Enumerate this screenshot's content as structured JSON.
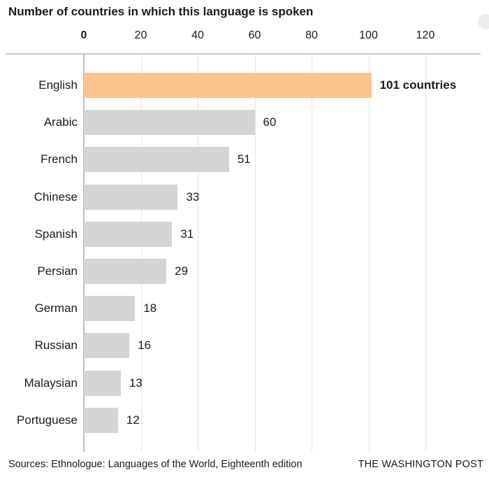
{
  "chart_data": {
    "type": "bar",
    "orientation": "horizontal",
    "title": "Number of countries in which this language is spoken",
    "categories": [
      "English",
      "Arabic",
      "French",
      "Chinese",
      "Spanish",
      "Persian",
      "German",
      "Russian",
      "Malaysian",
      "Portuguese"
    ],
    "values": [
      101,
      60,
      51,
      33,
      31,
      29,
      18,
      16,
      13,
      12
    ],
    "value_labels": [
      "101 countries",
      "60",
      "51",
      "33",
      "31",
      "29",
      "18",
      "16",
      "13",
      "12"
    ],
    "highlight_index": 0,
    "x_ticks": [
      "0",
      "20",
      "40",
      "60",
      "80",
      "100",
      "120"
    ],
    "xlim": [
      0,
      140
    ],
    "axis_position": "top",
    "grid": true,
    "colors": {
      "highlight": "#fcc48e",
      "bar": "#d4d4d4",
      "grid": "#e3e3e3"
    }
  },
  "footer": {
    "source": "Sources: Ethnologue: Languages of the World, Eighteenth edition",
    "credit": "THE WASHINGTON POST"
  }
}
